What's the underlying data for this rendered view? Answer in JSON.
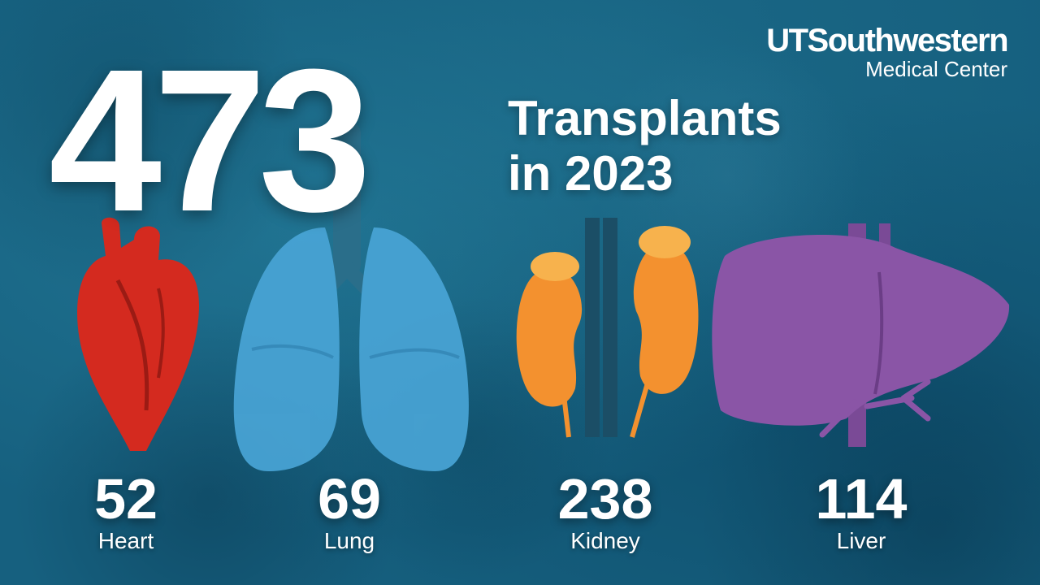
{
  "logo": {
    "line1": "UTSouthwestern",
    "line2": "Medical Center"
  },
  "total": "473",
  "headline": {
    "line1": "Transplants",
    "line2": "in 2023"
  },
  "organs": [
    {
      "value": "52",
      "label": "Heart",
      "color": "#d42a1f"
    },
    {
      "value": "69",
      "label": "Lung",
      "color": "#4aa6d8"
    },
    {
      "value": "238",
      "label": "Kidney",
      "color": "#f3912f"
    },
    {
      "value": "114",
      "label": "Liver",
      "color": "#8a55a6"
    }
  ]
}
